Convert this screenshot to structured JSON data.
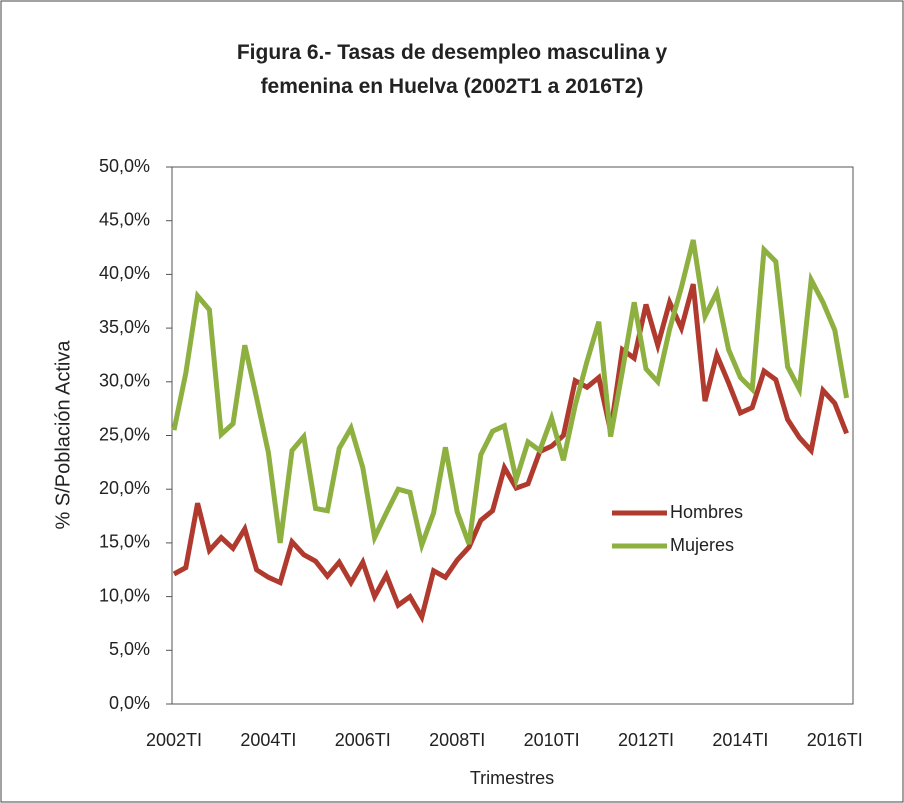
{
  "chart_data": {
    "type": "line",
    "title": "Figura 6.- Tasas de desempleo masculina y femenina en Huelva (2002T1 a 2016T2)",
    "x_label": "Trimestres",
    "y_label": "% S/Población Activa",
    "categories": [
      "2002TI",
      null,
      null,
      null,
      null,
      null,
      null,
      null,
      "2004TI",
      null,
      null,
      null,
      null,
      null,
      null,
      null,
      "2006TI",
      null,
      null,
      null,
      null,
      null,
      null,
      null,
      "2008TI",
      null,
      null,
      null,
      null,
      null,
      null,
      null,
      "2010TI",
      null,
      null,
      null,
      null,
      null,
      null,
      null,
      "2012TI",
      null,
      null,
      null,
      null,
      null,
      null,
      null,
      "2014TI",
      null,
      null,
      null,
      null,
      null,
      null,
      null,
      "2016TI",
      null
    ],
    "series": [
      {
        "name": "Hombres",
        "color": "#b03a2e",
        "values": [
          12.1,
          12.7,
          18.7,
          14.3,
          15.5,
          14.5,
          16.3,
          12.5,
          11.8,
          11.3,
          15.1,
          13.9,
          13.3,
          11.9,
          13.2,
          11.3,
          13.2,
          10.0,
          12.0,
          9.2,
          10.0,
          8.1,
          12.4,
          11.8,
          13.4,
          14.6,
          17.1,
          18.0,
          22.0,
          20.1,
          20.5,
          23.5,
          24.0,
          25.0,
          30.1,
          29.5,
          30.4,
          25.4,
          33.0,
          32.2,
          37.2,
          33.4,
          37.4,
          35.0,
          39.1,
          28.2,
          32.5,
          29.9,
          27.1,
          27.6,
          31.0,
          30.2,
          26.5,
          24.8,
          23.6,
          29.2,
          28.0,
          25.2
        ]
      },
      {
        "name": "Mujeres",
        "color": "#8db040",
        "values": [
          25.5,
          30.8,
          38.0,
          36.7,
          25.1,
          26.1,
          33.4,
          28.5,
          23.4,
          15.0,
          23.6,
          24.9,
          18.2,
          18.0,
          23.8,
          25.7,
          22.0,
          15.5,
          17.8,
          20.0,
          19.7,
          14.8,
          17.8,
          23.9,
          17.9,
          14.9,
          23.2,
          25.4,
          25.9,
          20.9,
          24.4,
          23.6,
          26.6,
          22.7,
          27.8,
          31.9,
          35.6,
          24.9,
          31.0,
          37.4,
          31.2,
          30.0,
          34.9,
          38.8,
          43.2,
          36.1,
          38.3,
          33.0,
          30.4,
          29.3,
          42.3,
          41.2,
          31.4,
          29.3,
          39.5,
          37.4,
          34.8,
          28.5
        ]
      }
    ],
    "ylim": [
      0,
      50
    ],
    "yticks": [
      {
        "value": 0,
        "label": "0,0%"
      },
      {
        "value": 5,
        "label": "5,0%"
      },
      {
        "value": 10,
        "label": "10,0%"
      },
      {
        "value": 15,
        "label": "15,0%"
      },
      {
        "value": 20,
        "label": "20,0%"
      },
      {
        "value": 25,
        "label": "25,0%"
      },
      {
        "value": 30,
        "label": "30,0%"
      },
      {
        "value": 35,
        "label": "35,0%"
      },
      {
        "value": 40,
        "label": "40,0%"
      },
      {
        "value": 45,
        "label": "45,0%"
      },
      {
        "value": 50,
        "label": "50,0%"
      }
    ],
    "grid": false,
    "legend": "right"
  }
}
